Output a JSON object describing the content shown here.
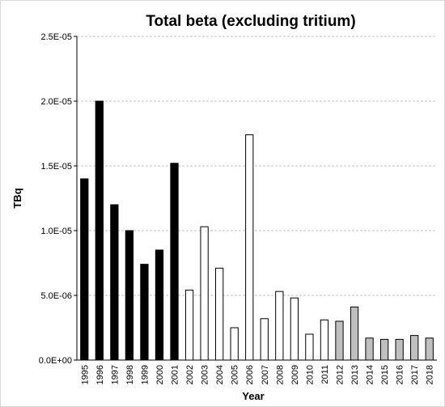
{
  "chart_data": {
    "type": "bar",
    "title": "Total beta (excluding tritium)",
    "x_label": "Year",
    "y_label": "TBq",
    "categories": [
      "1995",
      "1996",
      "1997",
      "1998",
      "1999",
      "2000",
      "2001",
      "2002",
      "2003",
      "2004",
      "2005",
      "2006",
      "2007",
      "2008",
      "2009",
      "2010",
      "2011",
      "2012",
      "2013",
      "2014",
      "2015",
      "2016",
      "2017",
      "2018"
    ],
    "values": [
      1.4e-05,
      2e-05,
      1.2e-05,
      1e-05,
      7.4e-06,
      8.5e-06,
      1.52e-05,
      5.4e-06,
      1.03e-05,
      7.1e-06,
      2.5e-06,
      1.74e-05,
      3.2e-06,
      5.3e-06,
      4.8e-06,
      2e-06,
      3.1e-06,
      3e-06,
      4.1e-06,
      1.7e-06,
      1.6e-06,
      1.6e-06,
      1.9e-06,
      1.7e-06
    ],
    "colors": [
      "#000000",
      "#000000",
      "#000000",
      "#000000",
      "#000000",
      "#000000",
      "#000000",
      "#ffffff",
      "#ffffff",
      "#ffffff",
      "#ffffff",
      "#ffffff",
      "#ffffff",
      "#ffffff",
      "#ffffff",
      "#ffffff",
      "#ffffff",
      "#bfbfbf",
      "#bfbfbf",
      "#bfbfbf",
      "#bfbfbf",
      "#bfbfbf",
      "#bfbfbf",
      "#bfbfbf"
    ],
    "ylim": [
      0,
      2.5e-05
    ],
    "yticks": [
      {
        "value": 0,
        "label": "0.0E+00"
      },
      {
        "value": 5e-06,
        "label": "5.0E-06"
      },
      {
        "value": 1e-05,
        "label": "1.0E-05"
      },
      {
        "value": 1.5e-05,
        "label": "1.5E-05"
      },
      {
        "value": 2e-05,
        "label": "2.0E-05"
      },
      {
        "value": 2.5e-05,
        "label": "2.5E-05"
      }
    ],
    "grid": true
  }
}
